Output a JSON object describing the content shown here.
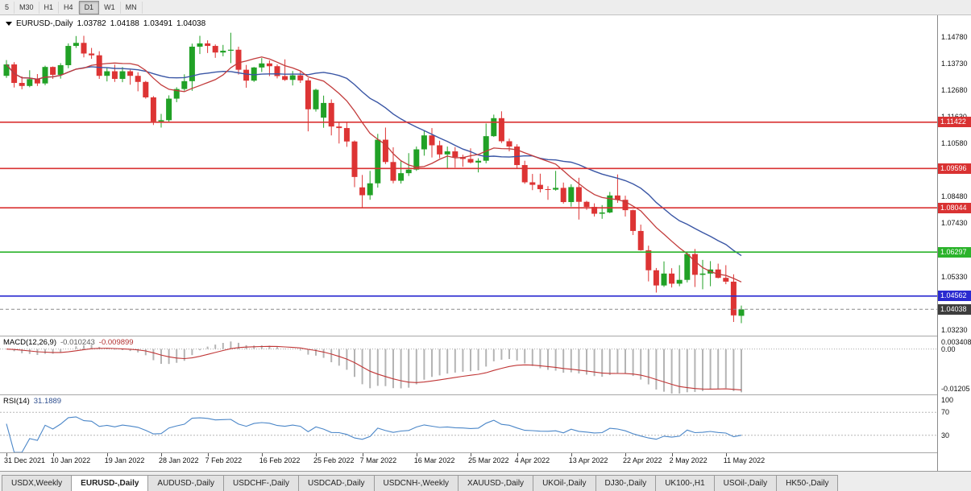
{
  "toolbar": {
    "timeframes": [
      {
        "label": "5",
        "active": false
      },
      {
        "label": "M30",
        "active": false
      },
      {
        "label": "H1",
        "active": false
      },
      {
        "label": "H4",
        "active": false
      },
      {
        "label": "D1",
        "active": true
      },
      {
        "label": "W1",
        "active": false
      },
      {
        "label": "MN",
        "active": false
      }
    ]
  },
  "chart_header": {
    "symbol": "EURUSD-,Daily",
    "open": "1.03782",
    "high": "1.04188",
    "low": "1.03491",
    "close": "1.04038"
  },
  "indicators": {
    "macd": {
      "label": "MACD(12,26,9)",
      "params": [
        12,
        26,
        9
      ],
      "value_main": "-0.010243",
      "value_signal": "-0.009899",
      "axis_labels": [
        "0.003408",
        "0.00",
        "-0.01205"
      ],
      "ylim": [
        -0.01205,
        0.003408
      ],
      "histogram_color": "#b4b4b4",
      "signal_color": "#c03535"
    },
    "rsi": {
      "label": "RSI(14)",
      "period": 14,
      "value": "31.1889",
      "axis_labels": [
        "100",
        "70",
        "30"
      ],
      "levels": [
        70,
        30
      ],
      "ylim": [
        0,
        100
      ],
      "line_color": "#4a86c8"
    }
  },
  "time_axis": {
    "labels": [
      {
        "i": 0,
        "text": "31 Dec 2021"
      },
      {
        "i": 6,
        "text": "10 Jan 2022"
      },
      {
        "i": 13,
        "text": "19 Jan 2022"
      },
      {
        "i": 20,
        "text": "28 Jan 2022"
      },
      {
        "i": 26,
        "text": "7 Feb 2022"
      },
      {
        "i": 33,
        "text": "16 Feb 2022"
      },
      {
        "i": 40,
        "text": "25 Feb 2022"
      },
      {
        "i": 46,
        "text": "7 Mar 2022"
      },
      {
        "i": 53,
        "text": "16 Mar 2022"
      },
      {
        "i": 60,
        "text": "25 Mar 2022"
      },
      {
        "i": 66,
        "text": "4 Apr 2022"
      },
      {
        "i": 73,
        "text": "13 Apr 2022"
      },
      {
        "i": 80,
        "text": "22 Apr 2022"
      },
      {
        "i": 86,
        "text": "2 May 2022"
      },
      {
        "i": 93,
        "text": "11 May 2022"
      }
    ]
  },
  "tabs": [
    {
      "label": "USDX,Weekly",
      "active": false
    },
    {
      "label": "EURUSD-,Daily",
      "active": true
    },
    {
      "label": "AUDUSD-,Daily",
      "active": false
    },
    {
      "label": "USDCHF-,Daily",
      "active": false
    },
    {
      "label": "USDCAD-,Daily",
      "active": false
    },
    {
      "label": "USDCNH-,Weekly",
      "active": false
    },
    {
      "label": "XAUUSD-,Daily",
      "active": false
    },
    {
      "label": "UKOil-,Daily",
      "active": false
    },
    {
      "label": "DJ30-,Daily",
      "active": false
    },
    {
      "label": "UK100-,H1",
      "active": false
    },
    {
      "label": "USOil-,Daily",
      "active": false
    },
    {
      "label": "HK50-,Daily",
      "active": false
    }
  ],
  "chart_data": {
    "type": "candlestick",
    "symbol": "EURUSD-",
    "timeframe": "Daily",
    "ylim": [
      1.03,
      1.1567
    ],
    "colors": {
      "up": "#21a126",
      "down": "#dd3434"
    },
    "price_axis_labels": [
      "1.14780",
      "1.13730",
      "1.12680",
      "1.11630",
      "1.10580",
      "1.08480",
      "1.07430",
      "1.05330",
      "1.03230"
    ],
    "levels": [
      {
        "price": 1.11422,
        "label": "1.11422",
        "color": "#d93232"
      },
      {
        "price": 1.09596,
        "label": "1.09596",
        "color": "#d93232"
      },
      {
        "price": 1.08044,
        "label": "1.08044",
        "color": "#d93232"
      },
      {
        "price": 1.06297,
        "label": "1.06297",
        "color": "#2bb32b"
      },
      {
        "price": 1.04562,
        "label": "1.04562",
        "color": "#2a2ad0"
      }
    ],
    "current_price": {
      "price": 1.04038,
      "label": "1.04038",
      "badge_color": "#3d3d3d"
    },
    "overlays": {
      "ma_fast": {
        "period": 10,
        "color": "#c23b3b"
      },
      "ma_slow": {
        "period": 21,
        "color": "#3a56a5"
      }
    },
    "candles": [
      [
        "2021.12.31",
        1.1325,
        1.1387,
        1.1317,
        1.137
      ],
      [
        "2022.01.03",
        1.137,
        1.1379,
        1.1279,
        1.1297
      ],
      [
        "2022.01.04",
        1.1297,
        1.1323,
        1.1272,
        1.1285
      ],
      [
        "2022.01.05",
        1.1285,
        1.1347,
        1.128,
        1.1312
      ],
      [
        "2022.01.06",
        1.1312,
        1.1332,
        1.1285,
        1.1295
      ],
      [
        "2022.01.07",
        1.1295,
        1.1365,
        1.1288,
        1.136
      ],
      [
        "2022.01.10",
        1.136,
        1.1362,
        1.1313,
        1.1329
      ],
      [
        "2022.01.11",
        1.1329,
        1.1375,
        1.1314,
        1.1367
      ],
      [
        "2022.01.12",
        1.1367,
        1.1453,
        1.1355,
        1.1443
      ],
      [
        "2022.01.13",
        1.1443,
        1.1482,
        1.1435,
        1.1455
      ],
      [
        "2022.01.14",
        1.1455,
        1.1483,
        1.1398,
        1.1413
      ],
      [
        "2022.01.17",
        1.1413,
        1.1435,
        1.1392,
        1.1406
      ],
      [
        "2022.01.18",
        1.1406,
        1.1422,
        1.1313,
        1.1325
      ],
      [
        "2022.01.19",
        1.1325,
        1.1358,
        1.1303,
        1.1343
      ],
      [
        "2022.01.20",
        1.1343,
        1.1369,
        1.1301,
        1.1313
      ],
      [
        "2022.01.21",
        1.1313,
        1.136,
        1.13,
        1.1343
      ],
      [
        "2022.01.24",
        1.1343,
        1.1349,
        1.129,
        1.1325
      ],
      [
        "2022.01.25",
        1.1325,
        1.1339,
        1.1264,
        1.1301
      ],
      [
        "2022.01.26",
        1.1301,
        1.1305,
        1.1235,
        1.124
      ],
      [
        "2022.01.27",
        1.124,
        1.1245,
        1.1131,
        1.1145
      ],
      [
        "2022.01.28",
        1.1145,
        1.1175,
        1.1121,
        1.115
      ],
      [
        "2022.01.31",
        1.115,
        1.1248,
        1.1141,
        1.1235
      ],
      [
        "2022.02.01",
        1.1235,
        1.128,
        1.1221,
        1.1273
      ],
      [
        "2022.02.02",
        1.1273,
        1.1331,
        1.1266,
        1.1304
      ],
      [
        "2022.02.03",
        1.1304,
        1.1452,
        1.1266,
        1.144
      ],
      [
        "2022.02.04",
        1.144,
        1.1483,
        1.1411,
        1.1453
      ],
      [
        "2022.02.07",
        1.1453,
        1.1465,
        1.1415,
        1.1443
      ],
      [
        "2022.02.08",
        1.1443,
        1.1449,
        1.1396,
        1.1417
      ],
      [
        "2022.02.09",
        1.1417,
        1.1447,
        1.1402,
        1.1424
      ],
      [
        "2022.02.10",
        1.1424,
        1.1495,
        1.1375,
        1.1428
      ],
      [
        "2022.02.11",
        1.1428,
        1.144,
        1.133,
        1.1349
      ],
      [
        "2022.02.14",
        1.1349,
        1.1368,
        1.1278,
        1.1306
      ],
      [
        "2022.02.15",
        1.1306,
        1.136,
        1.1301,
        1.1358
      ],
      [
        "2022.02.16",
        1.1358,
        1.1395,
        1.134,
        1.1374
      ],
      [
        "2022.02.17",
        1.1374,
        1.1386,
        1.1324,
        1.1363
      ],
      [
        "2022.02.18",
        1.1363,
        1.137,
        1.1315,
        1.1324
      ],
      [
        "2022.02.21",
        1.1324,
        1.139,
        1.1305,
        1.1309
      ],
      [
        "2022.02.22",
        1.1309,
        1.1344,
        1.1287,
        1.1327
      ],
      [
        "2022.02.23",
        1.1327,
        1.1342,
        1.1297,
        1.1307
      ],
      [
        "2022.02.24",
        1.1307,
        1.1316,
        1.1106,
        1.1193
      ],
      [
        "2022.02.25",
        1.1193,
        1.1274,
        1.1184,
        1.127
      ],
      [
        "2022.02.28",
        1.116,
        1.1247,
        1.112,
        1.1218
      ],
      [
        "2022.03.01",
        1.1218,
        1.1232,
        1.109,
        1.1125
      ],
      [
        "2022.03.02",
        1.1125,
        1.1143,
        1.1058,
        1.1119
      ],
      [
        "2022.03.03",
        1.1119,
        1.114,
        1.1045,
        1.1066
      ],
      [
        "2022.03.04",
        1.1066,
        1.107,
        1.0886,
        1.0926
      ],
      [
        "2022.03.07",
        1.0885,
        1.0934,
        1.0806,
        1.0854
      ],
      [
        "2022.03.08",
        1.0854,
        1.095,
        1.0836,
        1.0901
      ],
      [
        "2022.03.09",
        1.0901,
        1.1096,
        1.0884,
        1.1073
      ],
      [
        "2022.03.10",
        1.1073,
        1.1121,
        1.0977,
        1.0985
      ],
      [
        "2022.03.11",
        1.0985,
        1.1043,
        1.0901,
        1.0911
      ],
      [
        "2022.03.14",
        1.0911,
        1.099,
        1.09,
        1.0941
      ],
      [
        "2022.03.15",
        1.0941,
        1.102,
        1.093,
        1.0955
      ],
      [
        "2022.03.16",
        1.0955,
        1.1046,
        1.095,
        1.1035
      ],
      [
        "2022.03.17",
        1.1035,
        1.1109,
        1.101,
        1.109
      ],
      [
        "2022.03.18",
        1.109,
        1.1119,
        1.1003,
        1.1051
      ],
      [
        "2022.03.21",
        1.1051,
        1.1069,
        1.1,
        1.1015
      ],
      [
        "2022.03.22",
        1.1015,
        1.1046,
        1.0961,
        1.1027
      ],
      [
        "2022.03.23",
        1.1027,
        1.1044,
        1.0963,
        1.1004
      ],
      [
        "2022.03.24",
        1.1004,
        1.1014,
        1.0966,
        1.0997
      ],
      [
        "2022.03.25",
        1.0997,
        1.1039,
        1.0979,
        1.0983
      ],
      [
        "2022.03.28",
        1.0983,
        1.1,
        1.0944,
        1.099
      ],
      [
        "2022.03.29",
        1.099,
        1.1137,
        1.098,
        1.1087
      ],
      [
        "2022.03.30",
        1.1087,
        1.1172,
        1.1084,
        1.1158
      ],
      [
        "2022.03.31",
        1.1158,
        1.1185,
        1.106,
        1.1067
      ],
      [
        "2022.04.01",
        1.1067,
        1.1077,
        1.1027,
        1.1046
      ],
      [
        "2022.04.04",
        1.1046,
        1.1055,
        1.096,
        1.0973
      ],
      [
        "2022.04.05",
        1.0973,
        1.099,
        1.0899,
        1.0905
      ],
      [
        "2022.04.06",
        1.0905,
        1.0938,
        1.0874,
        1.0895
      ],
      [
        "2022.04.07",
        1.0895,
        1.0939,
        1.0865,
        1.0878
      ],
      [
        "2022.04.08",
        1.0878,
        1.089,
        1.0836,
        1.0876
      ],
      [
        "2022.04.11",
        1.0876,
        1.095,
        1.0872,
        1.0883
      ],
      [
        "2022.04.12",
        1.0883,
        1.0904,
        1.0821,
        1.0827
      ],
      [
        "2022.04.13",
        1.0827,
        1.0897,
        1.0809,
        1.0886
      ],
      [
        "2022.04.14",
        1.0886,
        1.0923,
        1.0758,
        1.0828
      ],
      [
        "2022.04.15",
        1.0828,
        1.0832,
        1.0796,
        1.0808
      ],
      [
        "2022.04.18",
        1.0808,
        1.0822,
        1.077,
        1.0781
      ],
      [
        "2022.04.19",
        1.0781,
        1.0815,
        1.0761,
        1.0786
      ],
      [
        "2022.04.20",
        1.0786,
        1.0867,
        1.0783,
        1.0853
      ],
      [
        "2022.04.21",
        1.0853,
        1.0936,
        1.0824,
        1.0836
      ],
      [
        "2022.04.22",
        1.0836,
        1.0852,
        1.077,
        1.0795
      ],
      [
        "2022.04.25",
        1.0795,
        1.0797,
        1.0697,
        1.0713
      ],
      [
        "2022.04.26",
        1.0713,
        1.0738,
        1.0635,
        1.0637
      ],
      [
        "2022.04.27",
        1.0637,
        1.0655,
        1.0514,
        1.0558
      ],
      [
        "2022.04.28",
        1.0558,
        1.0567,
        1.047,
        1.0498
      ],
      [
        "2022.04.29",
        1.0498,
        1.0593,
        1.0492,
        1.0545
      ],
      [
        "2022.05.02",
        1.0545,
        1.0566,
        1.049,
        1.0505
      ],
      [
        "2022.05.03",
        1.0505,
        1.0578,
        1.0495,
        1.052
      ],
      [
        "2022.05.04",
        1.052,
        1.0632,
        1.051,
        1.0622
      ],
      [
        "2022.05.05",
        1.0622,
        1.0642,
        1.0492,
        1.054
      ],
      [
        "2022.05.06",
        1.054,
        1.0599,
        1.0483,
        1.0545
      ],
      [
        "2022.05.09",
        1.0545,
        1.0594,
        1.0495,
        1.0561
      ],
      [
        "2022.05.10",
        1.0561,
        1.0584,
        1.0526,
        1.0528
      ],
      [
        "2022.05.11",
        1.0528,
        1.0578,
        1.0503,
        1.0513
      ],
      [
        "2022.05.12",
        1.0513,
        1.0542,
        1.0354,
        1.038
      ],
      [
        "2022.05.13",
        1.03782,
        1.04188,
        1.03491,
        1.04038
      ]
    ]
  }
}
